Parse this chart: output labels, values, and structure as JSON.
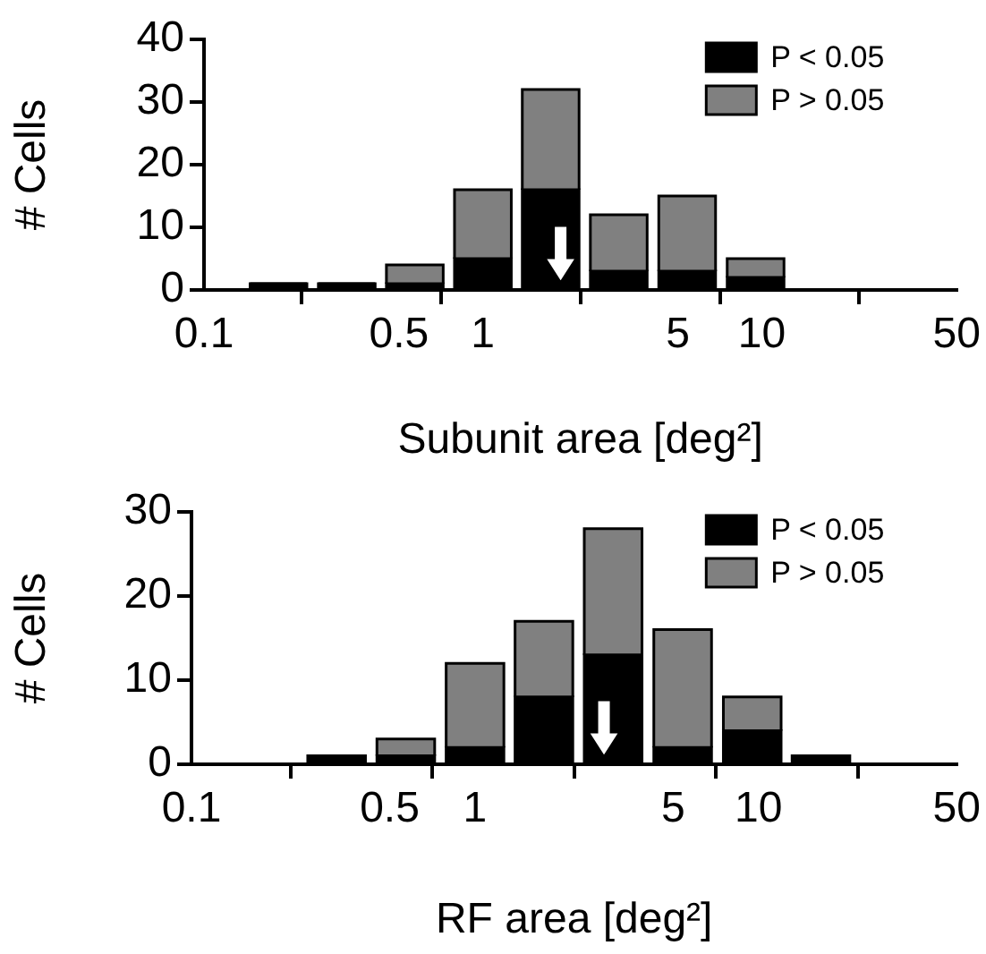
{
  "chart_data": [
    {
      "type": "bar",
      "xlabel": "Subunit area [deg²]",
      "ylabel": "# Cells",
      "log": "x",
      "stacked": true,
      "legend": "top right",
      "x": [
        0.185,
        0.325,
        0.57,
        1.0,
        1.75,
        3.07,
        5.4,
        9.5,
        16.6,
        29.1
      ],
      "series": [
        {
          "name": "P < 0.05",
          "color": "#000000",
          "values": [
            1,
            1,
            1,
            5,
            16,
            3,
            3,
            2,
            0,
            0
          ]
        },
        {
          "name": "P > 0.05",
          "color": "#808080",
          "values": [
            0,
            0,
            3,
            11,
            16,
            9,
            12,
            3,
            0,
            0
          ]
        }
      ],
      "xlim": [
        0.1,
        50
      ],
      "xticks": [
        0.1,
        0.5,
        1,
        5,
        10,
        50
      ],
      "ylim": [
        0,
        40
      ],
      "yticks": [
        0,
        10,
        20,
        30,
        40
      ],
      "ref_lines": [
        {
          "axis": "x",
          "value": 1.9
        }
      ]
    },
    {
      "type": "bar",
      "xlabel": "RF area [deg²]",
      "ylabel": "# Cells",
      "log": "x",
      "stacked": true,
      "legend": "top right",
      "x": [
        0.325,
        0.57,
        1.0,
        1.75,
        3.07,
        5.4,
        9.5,
        16.6
      ],
      "series": [
        {
          "name": "P < 0.05",
          "color": "#000000",
          "values": [
            1,
            1,
            2,
            8,
            13,
            2,
            4,
            1
          ]
        },
        {
          "name": "P > 0.05",
          "color": "#808080",
          "values": [
            0,
            2,
            10,
            9,
            15,
            14,
            4,
            0
          ]
        }
      ],
      "xlim": [
        0.1,
        50
      ],
      "xticks": [
        0.1,
        0.5,
        1,
        5,
        10,
        50
      ],
      "ylim": [
        0,
        30
      ],
      "yticks": [
        0,
        10,
        20,
        30
      ],
      "ref_lines": [
        {
          "axis": "x",
          "value": 2.85
        }
      ]
    }
  ]
}
